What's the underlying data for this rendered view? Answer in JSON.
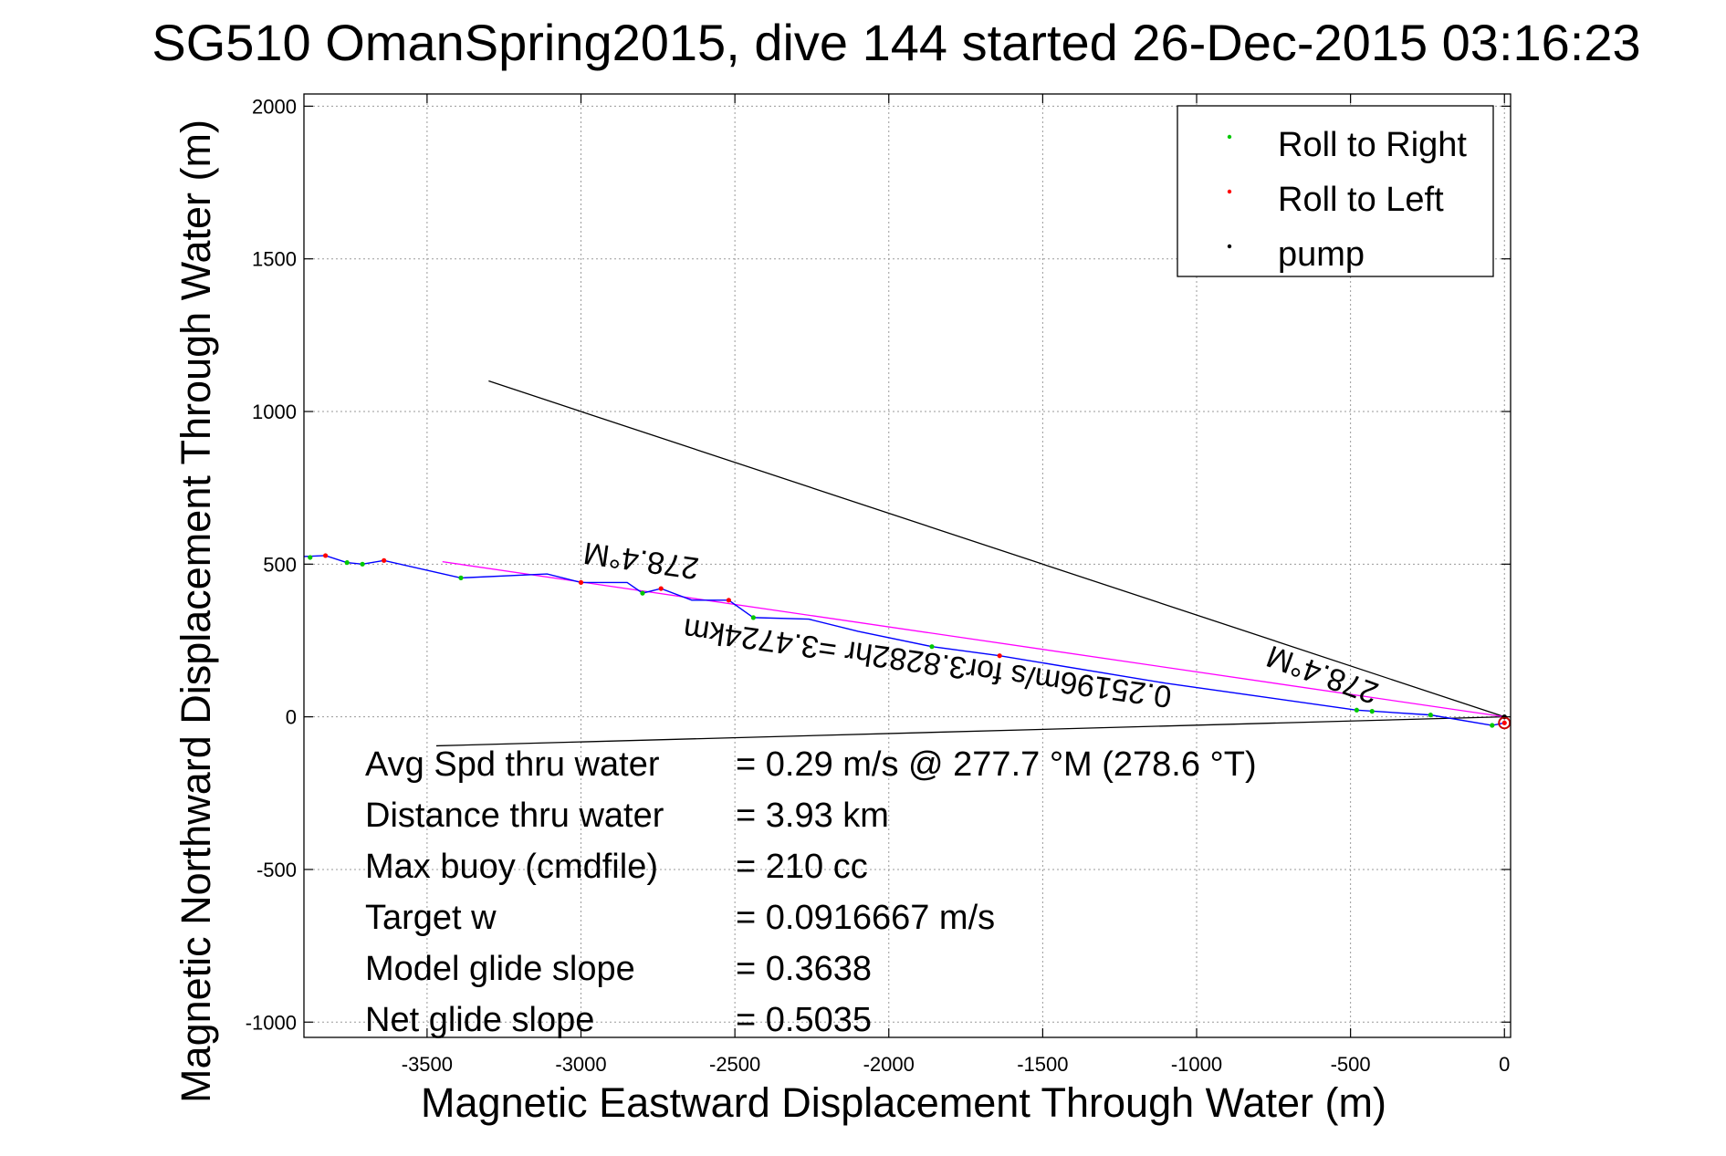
{
  "chart_data": {
    "type": "scatter",
    "title": "SG510 OmanSpring2015, dive 144 started 26-Dec-2015 03:16:23",
    "xlabel": "Magnetic Eastward Displacement Through Water (m)",
    "ylabel": "Magnetic Northward Displacement Through Water (m)",
    "xlim": [
      -3900,
      20
    ],
    "ylim": [
      -1050,
      2040
    ],
    "xticks": [
      -3500,
      -3000,
      -2500,
      -2000,
      -1500,
      -1000,
      -500,
      0
    ],
    "yticks": [
      -1000,
      -500,
      0,
      500,
      1000,
      1500,
      2000
    ],
    "grid": true,
    "legend_position": "top-right",
    "colors": {
      "track": "#0000ff",
      "roll_right": "#00c800",
      "roll_left": "#ff0000",
      "pump": "#000000",
      "heading_line": "#ff00ff",
      "guide_lines": "#000000",
      "start_marker": "#cc0000"
    },
    "series": [
      {
        "name": "Roll to Right",
        "marker": "dot",
        "color": "#00c800",
        "x": [
          -3880,
          -3760,
          -3710,
          -3390,
          -2800,
          -2440,
          -1860,
          -480,
          -430,
          -240,
          -40
        ],
        "y": [
          522,
          505,
          500,
          455,
          405,
          325,
          230,
          22,
          18,
          6,
          -28
        ]
      },
      {
        "name": "Roll to Left",
        "marker": "dot",
        "color": "#ff0000",
        "x": [
          -3830,
          -3640,
          -3000,
          -2740,
          -2520,
          -1640,
          0
        ],
        "y": [
          528,
          512,
          440,
          420,
          382,
          200,
          -20
        ]
      },
      {
        "name": "pump",
        "marker": "dot",
        "color": "#000000",
        "x": [
          0
        ],
        "y": [
          0
        ]
      }
    ],
    "track": {
      "x": [
        -3900,
        -3830,
        -3760,
        -3710,
        -3640,
        -3390,
        -3110,
        -3000,
        -2850,
        -2800,
        -2740,
        -2640,
        -2520,
        -2440,
        -2260,
        -2100,
        -1860,
        -1640,
        -1100,
        -480,
        -240,
        -40,
        0
      ],
      "y": [
        525,
        528,
        505,
        500,
        512,
        455,
        468,
        440,
        440,
        405,
        420,
        382,
        382,
        325,
        320,
        280,
        230,
        200,
        110,
        22,
        6,
        -28,
        -20
      ]
    },
    "heading_line": {
      "x": [
        -3450,
        0
      ],
      "y": [
        508,
        0
      ]
    },
    "guide_lines": [
      {
        "x": [
          -3300,
          0
        ],
        "y": [
          1100,
          0
        ]
      },
      {
        "x": [
          -3470,
          0
        ],
        "y": [
          -95,
          0
        ]
      }
    ],
    "annotations": [
      {
        "text": "278.4°M",
        "x": -2800,
        "y": 545,
        "rotation": 188
      },
      {
        "text": "0.25196m/s for3.8282hr =3.4724km",
        "x": -1870,
        "y": 210,
        "rotation": 188
      },
      {
        "text": "278.4°M",
        "x": -580,
        "y": 170,
        "rotation": 200
      }
    ],
    "stats": [
      {
        "label": "Avg Spd thru water",
        "value": "=  0.29 m/s @ 277.7 °M (278.6 °T)"
      },
      {
        "label": "Distance thru water",
        "value": "=  3.93 km"
      },
      {
        "label": "Max buoy (cmdfile)",
        "value": "= 210 cc"
      },
      {
        "label": "Target w",
        "value": "= 0.0916667 m/s"
      },
      {
        "label": "Model glide slope",
        "value": "= 0.3638"
      },
      {
        "label": "Net glide slope",
        "value": "= 0.5035"
      }
    ]
  }
}
